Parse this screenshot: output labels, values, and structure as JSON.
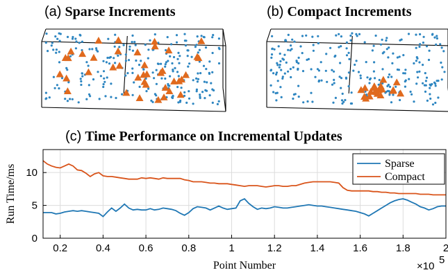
{
  "panels": {
    "a": {
      "tag": "(a)",
      "name": "Sparse Increments"
    },
    "b": {
      "tag": "(b)",
      "name": "Compact Increments"
    },
    "c": {
      "tag": "(c)",
      "name": "Time Performance on Incremental Updates"
    }
  },
  "colors": {
    "sparse": "#1f77b4",
    "compact": "#d95319",
    "points": "#2e86c1",
    "markers": "#e06a1e"
  },
  "chart_data": [
    {
      "type": "scatter",
      "title": "(a) Sparse Increments",
      "note": "3D point cloud with increment points distributed sparsely across the volume",
      "series": [
        {
          "name": "",
          "marker": "dot",
          "count": 260
        },
        {
          "name": "",
          "marker": "triangle",
          "count": 40
        }
      ]
    },
    {
      "type": "scatter",
      "title": "(b) Compact Increments",
      "note": "3D point cloud with increment points concentrated in one compact cluster",
      "series": [
        {
          "name": "",
          "marker": "dot",
          "count": 260
        },
        {
          "name": "",
          "marker": "triangle",
          "count": 20
        }
      ]
    },
    {
      "type": "line",
      "title": "(c) Time Performance on Incremental Updates",
      "xlabel": "Point Number",
      "ylabel": "Run Time/ms",
      "x_multiplier": "×10^5",
      "xlim": [
        0.12,
        2.0
      ],
      "ylim": [
        0,
        13.5
      ],
      "xticks": [
        "0.2",
        "0.4",
        "0.6",
        "0.8",
        "1",
        "1.2",
        "1.4",
        "1.6",
        "1.8",
        "2"
      ],
      "yticks": [
        "0",
        "5",
        "10"
      ],
      "grid": true,
      "legend": "top-right",
      "x": [
        0.12,
        0.14,
        0.16,
        0.18,
        0.2,
        0.22,
        0.24,
        0.26,
        0.28,
        0.3,
        0.32,
        0.34,
        0.36,
        0.38,
        0.4,
        0.42,
        0.44,
        0.46,
        0.48,
        0.5,
        0.52,
        0.54,
        0.56,
        0.58,
        0.6,
        0.62,
        0.64,
        0.66,
        0.68,
        0.7,
        0.72,
        0.74,
        0.76,
        0.78,
        0.8,
        0.82,
        0.84,
        0.86,
        0.88,
        0.9,
        0.92,
        0.94,
        0.96,
        0.98,
        1.0,
        1.02,
        1.04,
        1.06,
        1.08,
        1.1,
        1.12,
        1.14,
        1.16,
        1.18,
        1.2,
        1.22,
        1.24,
        1.26,
        1.28,
        1.3,
        1.32,
        1.34,
        1.36,
        1.38,
        1.4,
        1.42,
        1.44,
        1.46,
        1.48,
        1.5,
        1.52,
        1.54,
        1.56,
        1.58,
        1.6,
        1.62,
        1.64,
        1.66,
        1.68,
        1.7,
        1.72,
        1.74,
        1.76,
        1.78,
        1.8,
        1.82,
        1.84,
        1.86,
        1.88,
        1.9,
        1.92,
        1.94,
        1.96,
        1.98,
        2.0
      ],
      "series": [
        {
          "name": "Sparse",
          "values": [
            3.9,
            3.9,
            3.9,
            3.7,
            3.8,
            4.0,
            4.1,
            4.2,
            4.1,
            4.2,
            4.1,
            4.0,
            3.9,
            3.8,
            3.3,
            4.0,
            4.6,
            4.1,
            4.6,
            5.2,
            4.6,
            4.3,
            4.4,
            4.3,
            4.3,
            4.5,
            4.3,
            4.4,
            4.6,
            4.5,
            4.4,
            4.2,
            3.8,
            3.5,
            3.9,
            4.5,
            4.8,
            4.7,
            4.6,
            4.3,
            4.6,
            4.9,
            4.6,
            4.4,
            4.5,
            4.6,
            5.7,
            6.0,
            5.3,
            4.8,
            4.4,
            4.6,
            4.5,
            4.6,
            4.8,
            4.7,
            4.6,
            4.6,
            4.7,
            4.8,
            4.9,
            5.0,
            5.1,
            5.0,
            4.9,
            4.9,
            4.8,
            4.7,
            4.6,
            4.5,
            4.4,
            4.3,
            4.2,
            4.1,
            3.9,
            3.7,
            3.4,
            3.8,
            4.2,
            4.6,
            5.0,
            5.4,
            5.7,
            5.9,
            6.0,
            5.8,
            5.5,
            5.2,
            4.8,
            4.6,
            4.3,
            4.5,
            4.8,
            4.9,
            4.9
          ]
        },
        {
          "name": "Compact",
          "values": [
            11.8,
            11.3,
            11.0,
            10.8,
            10.7,
            11.0,
            11.3,
            11.0,
            10.4,
            10.3,
            9.9,
            9.4,
            9.8,
            10.0,
            9.5,
            9.4,
            9.4,
            9.3,
            9.2,
            9.1,
            9.0,
            9.0,
            9.0,
            9.2,
            9.1,
            9.2,
            9.1,
            9.0,
            9.2,
            9.1,
            9.1,
            9.1,
            9.1,
            8.9,
            8.8,
            8.6,
            8.6,
            8.6,
            8.5,
            8.4,
            8.4,
            8.3,
            8.3,
            8.3,
            8.2,
            8.1,
            8.0,
            7.9,
            8.0,
            8.0,
            8.0,
            7.9,
            7.8,
            7.9,
            8.0,
            8.0,
            7.9,
            7.9,
            8.0,
            8.0,
            8.2,
            8.4,
            8.5,
            8.6,
            8.6,
            8.6,
            8.6,
            8.6,
            8.5,
            8.4,
            7.7,
            7.3,
            7.2,
            7.2,
            7.2,
            7.2,
            7.2,
            7.1,
            7.1,
            7.0,
            7.0,
            6.9,
            6.9,
            6.8,
            6.8,
            6.8,
            6.8,
            6.8,
            6.7,
            6.7,
            6.7,
            6.6,
            6.6,
            6.6,
            6.6
          ]
        }
      ]
    }
  ]
}
